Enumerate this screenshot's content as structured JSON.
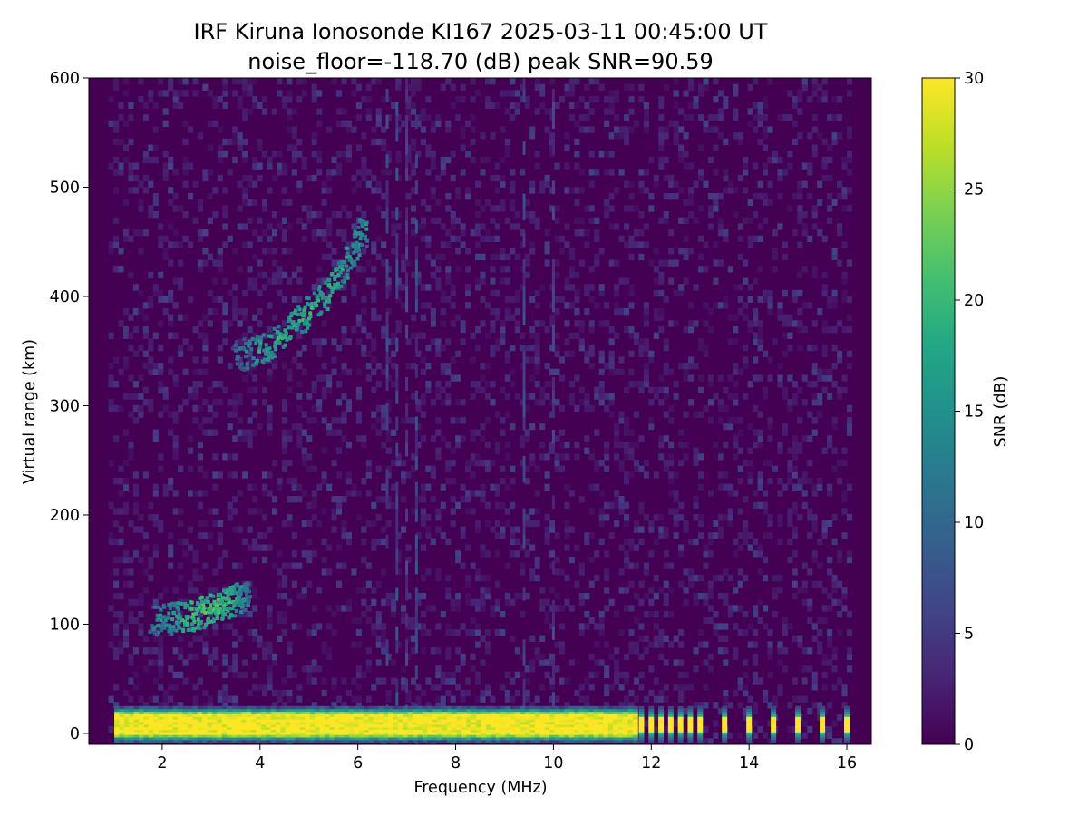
{
  "chart_data": {
    "type": "heatmap",
    "title": "IRF Kiruna Ionosonde KI167 2025-03-11 00:45:00  UT",
    "subtitle": "noise_floor=-118.70 (dB) peak SNR=90.59",
    "xlabel": "Frequency (MHz)",
    "ylabel": "Virtual range (km)",
    "xlim": [
      0.5,
      16.5
    ],
    "ylim": [
      -10,
      600
    ],
    "xticks": [
      2,
      4,
      6,
      8,
      10,
      12,
      14,
      16
    ],
    "yticks": [
      0,
      100,
      200,
      300,
      400,
      500,
      600
    ],
    "grid": false,
    "colormap": "viridis",
    "colorbar": {
      "label": "SNR (dB)",
      "range": [
        0,
        30
      ],
      "ticks": [
        0,
        5,
        10,
        15,
        20,
        25,
        30
      ]
    },
    "data_freq_range": [
      0.9,
      16.1
    ],
    "ground_band": {
      "range_km": [
        -8,
        25
      ],
      "snr_db": 30,
      "continuous_until_mhz": 11.7,
      "sparse_lines_mhz": [
        11.8,
        12.0,
        12.2,
        12.4,
        12.6,
        12.8,
        13.0,
        13.5,
        14.0,
        14.5,
        15.0,
        15.5,
        16.0
      ]
    },
    "echo_traces": [
      {
        "points": [
          {
            "freq_mhz": 1.8,
            "range_km": 103,
            "snr_db": 12
          },
          {
            "freq_mhz": 2.2,
            "range_km": 105,
            "snr_db": 16
          },
          {
            "freq_mhz": 2.6,
            "range_km": 108,
            "snr_db": 20
          },
          {
            "freq_mhz": 3.0,
            "range_km": 113,
            "snr_db": 21
          },
          {
            "freq_mhz": 3.3,
            "range_km": 118,
            "snr_db": 20
          },
          {
            "freq_mhz": 3.6,
            "range_km": 124,
            "snr_db": 17
          },
          {
            "freq_mhz": 3.8,
            "range_km": 128,
            "snr_db": 12
          }
        ]
      },
      {
        "points": [
          {
            "freq_mhz": 3.5,
            "range_km": 345,
            "snr_db": 10
          },
          {
            "freq_mhz": 4.0,
            "range_km": 350,
            "snr_db": 17
          },
          {
            "freq_mhz": 4.5,
            "range_km": 365,
            "snr_db": 18
          },
          {
            "freq_mhz": 5.0,
            "range_km": 385,
            "snr_db": 18
          },
          {
            "freq_mhz": 5.5,
            "range_km": 410,
            "snr_db": 18
          },
          {
            "freq_mhz": 5.9,
            "range_km": 440,
            "snr_db": 16
          },
          {
            "freq_mhz": 6.2,
            "range_km": 465,
            "snr_db": 14
          }
        ]
      }
    ],
    "interference_lines_mhz": [
      6.6,
      6.8,
      7.0,
      7.2,
      9.4,
      10.0
    ]
  }
}
